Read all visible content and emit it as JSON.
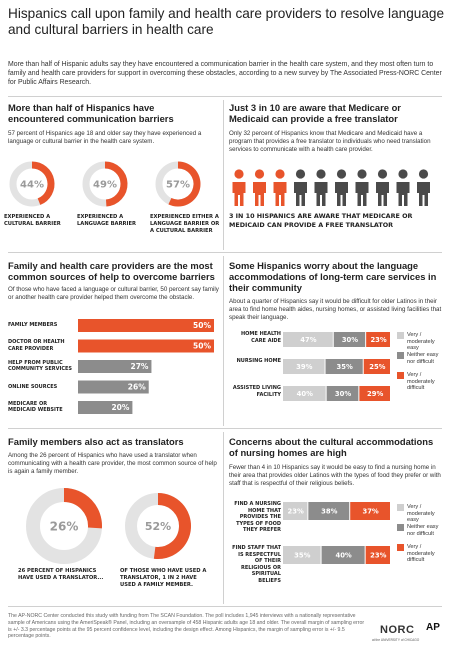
{
  "header": {
    "title": "Hispanics call upon family and health care providers to resolve language and cultural barriers in health care",
    "intro": "More than half of Hispanic adults say they have encountered a communication barrier in the health care system, and they most often turn to family and health care providers for support in overcoming these obstacles, according to a new survey by The Associated Press-NORC Center for Public Affairs Research."
  },
  "colors": {
    "accent": "#e8542b",
    "gray_dark": "#8c8c8c",
    "gray_light": "#cfcfcf",
    "track": "#e3e3e3"
  },
  "sections": {
    "barriers": {
      "title": "More than half of Hispanics have encountered communication barriers",
      "text": "57 percent of Hispanics age 18 and older say they have experienced a language or cultural barrier in the health care system."
    },
    "medicare": {
      "title": "Just 3 in 10 are aware that Medicare or Medicaid can provide a free translator",
      "text": "Only 32 percent of Hispanics know that Medicare and Medicaid have a program that provides a free translator to individuals who need translation services to communicate with a health care provider.",
      "caption": "3 in 10 Hispanics are aware that Medicare or Medicaid can provide a free translator"
    },
    "help": {
      "title": "Family and health care providers are the most common sources of help to overcome barriers",
      "text": "Of those who have faced a language or cultural barrier, 50 percent say family or another health care provider helped them overcome the obstacle."
    },
    "longterm": {
      "title": "Some Hispanics worry about the language accommodations of long-term care services in their community",
      "text": "About a quarter of Hispanics say it would be difficult for older Latinos in their area to find home health aides, nursing homes, or assisted living facilities that speak their language."
    },
    "translators": {
      "title": "Family members also act as translators",
      "text": "Among the 26 percent of Hispanics who have used a translator when communicating with a health care provider, the most common source of help is again a family member."
    },
    "cultural": {
      "title": "Concerns about the cultural accommodations of nursing homes are high",
      "text": "Fewer than 4 in 10 Hispanics say it would be easy to find a nursing home in their area that provides older Latinos with the types of food they prefer or with staff that is respectful of their religious beliefs."
    }
  },
  "legend": {
    "easy": "Very / moderately easy",
    "neither": "Neither easy nor difficult",
    "difficult": "Very / moderately difficult"
  },
  "footer": {
    "text": "The AP-NORC Center conducted this study with funding from The SCAN Foundation. The poll includes 1,945 interviews with a nationally representative sample of Americans using the AmeriSpeak® Panel, including an oversample of 458 Hispanic adults age 18 and older. The overall margin of sampling error is +/- 3.3 percentage points at the 95 percent confidence level, including the design effect. Among Hispanics, the margin of sampling error is +/- 9.5 percentage points.",
    "norc": "NORC",
    "norc_sub": "at the UNIVERSITY of CHICAGO",
    "ap": "AP",
    "ap_sub": "AP"
  },
  "chart_data": [
    {
      "type": "pie",
      "id": "barrier-donuts",
      "categories": [
        "Experienced a cultural barrier",
        "Experienced a language barrier",
        "Experienced either a language barrier or a cultural barrier"
      ],
      "values": [
        44,
        49,
        57
      ],
      "labels": [
        "44%",
        "49%",
        "57%"
      ]
    },
    {
      "type": "bar",
      "id": "translator-awareness-icons",
      "categories": [
        "Aware",
        "Not aware"
      ],
      "values": [
        3,
        7
      ],
      "total_icons": 10
    },
    {
      "type": "bar",
      "id": "help-sources",
      "categories": [
        "Family members",
        "Doctor or health care provider",
        "Help from public community services",
        "Online sources",
        "Medicare or Medicaid website"
      ],
      "values": [
        50,
        50,
        27,
        26,
        20
      ],
      "labels": [
        "50%",
        "50%",
        "27%",
        "26%",
        "20%"
      ],
      "xlim": [
        0,
        100
      ]
    },
    {
      "type": "bar",
      "id": "longterm-language",
      "stacked": true,
      "categories": [
        "Home health care aide",
        "Nursing home",
        "Assisted living facility"
      ],
      "series": [
        {
          "name": "Very / moderately easy",
          "values": [
            47,
            39,
            40
          ],
          "labels": [
            "47%",
            "39%",
            "40%"
          ]
        },
        {
          "name": "Neither easy nor difficult",
          "values": [
            30,
            35,
            30
          ],
          "labels": [
            "30%",
            "35%",
            "30%"
          ]
        },
        {
          "name": "Very / moderately difficult",
          "values": [
            23,
            25,
            29
          ],
          "labels": [
            "23%",
            "25%",
            "29%"
          ]
        }
      ]
    },
    {
      "type": "pie",
      "id": "translator-donuts",
      "categories": [
        "26 percent of Hispanics have used a translator...",
        "of those who have used a translator, 1 in 2 have used a family member."
      ],
      "values": [
        26,
        52
      ],
      "labels": [
        "26%",
        "52%"
      ]
    },
    {
      "type": "bar",
      "id": "cultural-accommodations",
      "stacked": true,
      "categories": [
        "Find a nursing home that provides the types of food they prefer",
        "Find staff that is respectful of their religious or spiritual beliefs"
      ],
      "series": [
        {
          "name": "Very / moderately easy",
          "values": [
            23,
            35
          ],
          "labels": [
            "23%",
            "35%"
          ]
        },
        {
          "name": "Neither easy nor difficult",
          "values": [
            38,
            40
          ],
          "labels": [
            "38%",
            "40%"
          ]
        },
        {
          "name": "Very / moderately difficult",
          "values": [
            37,
            23
          ],
          "labels": [
            "37%",
            "23%"
          ]
        }
      ]
    }
  ]
}
